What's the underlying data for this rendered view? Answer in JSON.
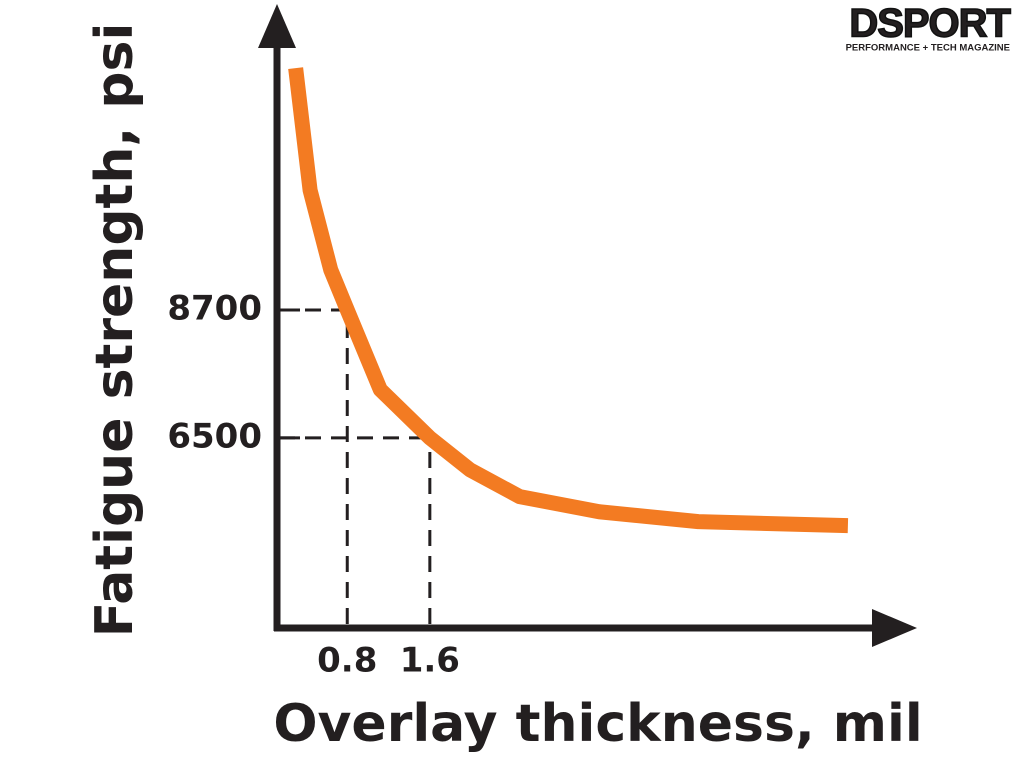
{
  "logo": {
    "title": "DSPORT",
    "subtitle": "PERFORMANCE + TECH MAGAZINE"
  },
  "chart_data": {
    "type": "line",
    "xlabel": "Overlay thickness, mil",
    "ylabel": "Fatigue strength, psi",
    "x": [
      0.3,
      0.44,
      0.64,
      0.8,
      1.12,
      1.6,
      1.99,
      2.47,
      3.24,
      4.2,
      5.65
    ],
    "series": [
      {
        "color": "#f37b22",
        "values": [
          12860,
          10760,
          9390,
          8700,
          7330,
          6500,
          5950,
          5490,
          5230,
          5060,
          4990
        ]
      }
    ],
    "xlim": [
      0.1,
      6.3
    ],
    "ylim": [
      3230,
      13860
    ],
    "xticks": [
      0.8,
      1.6
    ],
    "yticks": [
      6500,
      8700
    ]
  }
}
